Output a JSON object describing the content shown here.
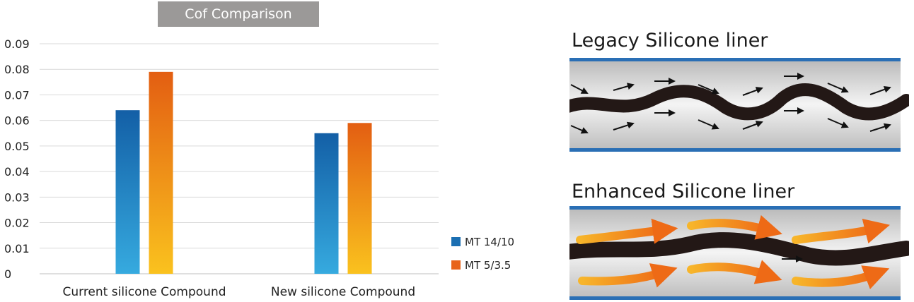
{
  "chart_data": {
    "type": "bar",
    "title": "Cof Comparison",
    "categories": [
      "Current silicone Compound",
      "New silicone Compound"
    ],
    "series": [
      {
        "name": "MT 14/10",
        "values": [
          0.064,
          0.055
        ],
        "color": "#1b6fb2"
      },
      {
        "name": "MT 5/3.5",
        "values": [
          0.079,
          0.059
        ],
        "color": "#e8641a"
      }
    ],
    "ylim": [
      0,
      0.09
    ],
    "yticks": [
      "0",
      "0.01",
      "0.02",
      "0.03",
      "0.04",
      "0.05",
      "0.06",
      "0.07",
      "0.08",
      "0.09"
    ],
    "xlabel": "",
    "ylabel": "",
    "grid": true,
    "legend": "right"
  },
  "diagrams": {
    "legacy_title": "Legacy Silicone liner",
    "enhanced_title": "Enhanced Silicone liner"
  },
  "colors": {
    "liner_border": "#2a6fb5",
    "cable": "#231816",
    "arrow_orange": "#ee7a1e",
    "arrow_yellow": "#f7b52a"
  }
}
